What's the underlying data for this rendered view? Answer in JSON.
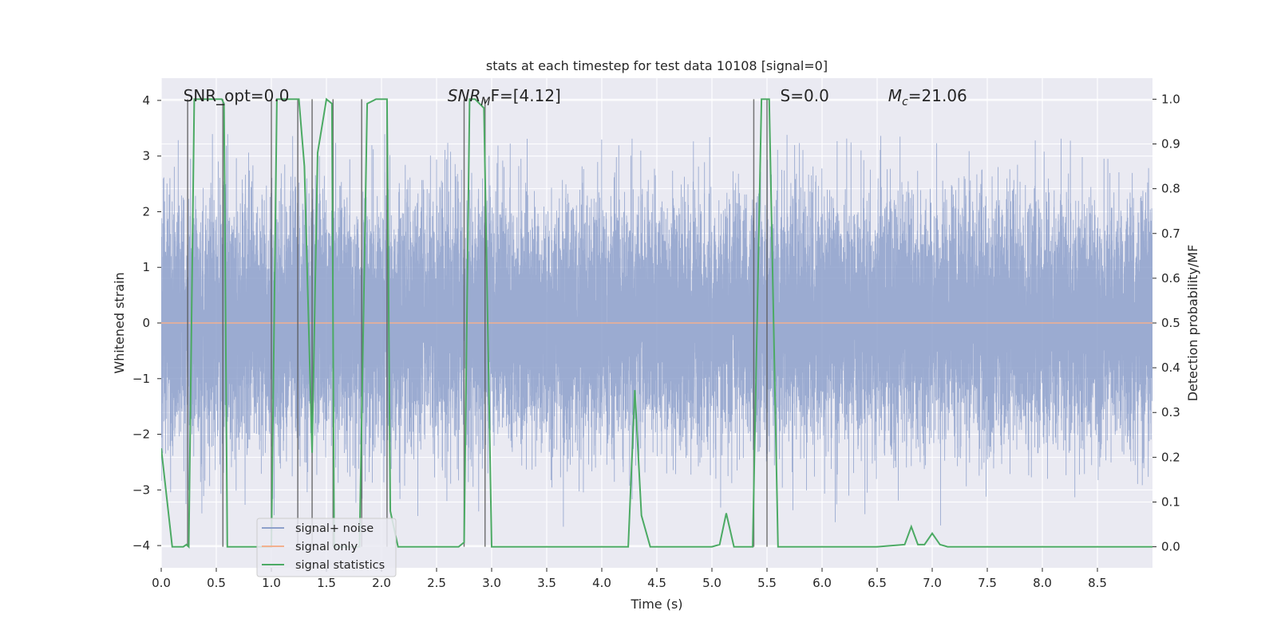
{
  "chart_data": {
    "type": "line",
    "title": "stats at each timestep for test data 10108 [signal=0]",
    "xlabel": "Time (s)",
    "ylabel": "Whitened strain",
    "y2label": "Detection probability/MF",
    "xlim": [
      0,
      9
    ],
    "ylim": [
      -4.4,
      4.4
    ],
    "y2lim": [
      -0.047,
      1.047
    ],
    "x_ticks": [
      0.0,
      0.5,
      1.0,
      1.5,
      2.0,
      2.5,
      3.0,
      3.5,
      4.0,
      4.5,
      5.0,
      5.5,
      6.0,
      6.5,
      7.0,
      7.5,
      8.0,
      8.5
    ],
    "x_tick_labels": [
      "0.0",
      "0.5",
      "1.0",
      "1.5",
      "2.0",
      "2.5",
      "3.0",
      "3.5",
      "4.0",
      "4.5",
      "5.0",
      "5.5",
      "6.0",
      "6.5",
      "7.0",
      "7.5",
      "8.0",
      "8.5"
    ],
    "y_ticks": [
      -4,
      -3,
      -2,
      -1,
      0,
      1,
      2,
      3,
      4
    ],
    "y_tick_labels": [
      "−4",
      "−3",
      "−2",
      "−1",
      "0",
      "1",
      "2",
      "3",
      "4"
    ],
    "y2_ticks": [
      0.0,
      0.1,
      0.2,
      0.3,
      0.4,
      0.5,
      0.6,
      0.7,
      0.8,
      0.9,
      1.0
    ],
    "y2_tick_labels": [
      "0.0",
      "0.1",
      "0.2",
      "0.3",
      "0.4",
      "0.5",
      "0.6",
      "0.7",
      "0.8",
      "0.9",
      "1.0"
    ],
    "grid": true,
    "legend_position": "lower-left",
    "annotations": [
      {
        "id": "snr-opt",
        "text": "SNR_opt=0.0",
        "x": 0.2,
        "y": 4.0
      },
      {
        "id": "snr-mf",
        "text": "SNR",
        "sub": "M",
        "suffix": "F=[4.12]",
        "x": 2.6,
        "y": 4.0
      },
      {
        "id": "s-value",
        "text": "S",
        "suffix": "=0.0",
        "x": 5.62,
        "y": 4.0
      },
      {
        "id": "chirp-mass",
        "text": "M",
        "sub": "c",
        "suffix": "=21.06",
        "x": 6.6,
        "y": 4.0
      }
    ],
    "series": [
      {
        "name": "signal+ noise",
        "color": "#8da0cb",
        "kind": "noise",
        "sample_rate_hz": 2048,
        "sigma": 1.0,
        "clip": [
          -4.0,
          3.4
        ]
      },
      {
        "name": "signal only",
        "color": "#f2b08f",
        "x": [
          0,
          9
        ],
        "y": [
          0,
          0
        ]
      },
      {
        "name": "signal statistics",
        "color": "#4caa64",
        "axis": "y2",
        "x": [
          0.0,
          0.05,
          0.1,
          0.2,
          0.23,
          0.25,
          0.3,
          0.55,
          0.57,
          0.6,
          0.8,
          1.0,
          1.05,
          1.25,
          1.3,
          1.37,
          1.42,
          1.5,
          1.55,
          1.57,
          1.62,
          1.8,
          1.87,
          1.95,
          2.05,
          2.08,
          2.15,
          2.25,
          2.5,
          2.7,
          2.75,
          2.8,
          2.85,
          2.93,
          3.0,
          3.07,
          3.5,
          4.0,
          4.24,
          4.3,
          4.36,
          4.44,
          4.8,
          5.0,
          5.07,
          5.13,
          5.2,
          5.3,
          5.37,
          5.45,
          5.52,
          5.6,
          6.0,
          6.5,
          6.75,
          6.81,
          6.87,
          6.93,
          7.0,
          7.07,
          7.14,
          7.5,
          8.0,
          8.5,
          9.0
        ],
        "y": [
          0.22,
          0.11,
          0.0,
          0.0,
          0.005,
          0.0,
          1.0,
          1.0,
          0.99,
          0.0,
          0.0,
          0.0,
          1.0,
          1.0,
          0.85,
          0.21,
          0.88,
          1.0,
          0.99,
          0.0,
          0.0,
          0.0,
          0.99,
          1.0,
          1.0,
          0.08,
          0.0,
          0.0,
          0.0,
          0.0,
          0.01,
          1.0,
          1.0,
          0.98,
          0.0,
          0.0,
          0.0,
          0.0,
          0.0,
          0.35,
          0.07,
          0.0,
          0.0,
          0.0,
          0.005,
          0.075,
          0.0,
          0.0,
          0.0,
          1.0,
          1.0,
          0.0,
          0.0,
          0.0,
          0.005,
          0.045,
          0.005,
          0.005,
          0.03,
          0.005,
          0.0,
          0.0,
          0.0,
          0.0,
          0.0
        ]
      }
    ],
    "vertical_lines": [
      0.24,
      0.56,
      1.0,
      1.24,
      1.37,
      1.56,
      1.82,
      2.05,
      2.75,
      2.94,
      5.38,
      5.5
    ]
  }
}
